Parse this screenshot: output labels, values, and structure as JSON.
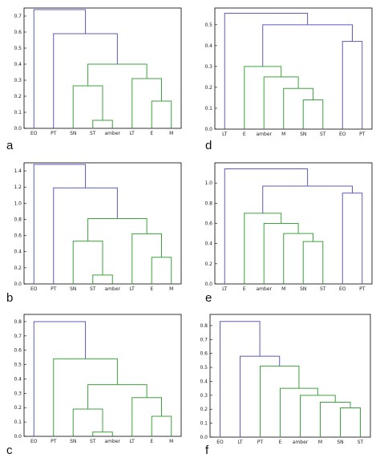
{
  "colors": {
    "top": "#5b5bc0",
    "cluster": "#3da33d",
    "frame": "#000000"
  },
  "chart_data": [
    {
      "type": "dendrogram",
      "panel": "a",
      "leaves": [
        "EO",
        "PT",
        "SN",
        "ST",
        "amber",
        "LT",
        "E",
        "M"
      ],
      "ylim": [
        0,
        0.75
      ],
      "yticks": [
        "0.0",
        "0.1",
        "0.2",
        "0.3",
        "0.4",
        "0.5",
        "0.6",
        "0.7"
      ],
      "yvals": [
        0,
        0.1,
        0.2,
        0.3,
        0.4,
        0.5,
        0.6,
        0.7
      ],
      "links": [
        {
          "left": 3,
          "right": 4,
          "height": 0.05,
          "color": "cluster"
        },
        {
          "left": 2,
          "right": 8,
          "height": 0.265,
          "color": "cluster"
        },
        {
          "left": 6,
          "right": 7,
          "height": 0.17,
          "color": "cluster"
        },
        {
          "left": 5,
          "right": 10,
          "height": 0.31,
          "color": "cluster"
        },
        {
          "left": 9,
          "right": 11,
          "height": 0.4,
          "color": "cluster"
        },
        {
          "left": 1,
          "right": 12,
          "height": 0.59,
          "color": "top"
        },
        {
          "left": 0,
          "right": 13,
          "height": 0.74,
          "color": "top"
        }
      ]
    },
    {
      "type": "dendrogram",
      "panel": "b",
      "leaves": [
        "EO",
        "PT",
        "SN",
        "ST",
        "amber",
        "LT",
        "E",
        "M"
      ],
      "ylim": [
        0,
        1.5
      ],
      "yticks": [
        "0.0",
        "0.2",
        "0.4",
        "0.6",
        "0.8",
        "1.0",
        "1.2",
        "1.4"
      ],
      "yvals": [
        0,
        0.2,
        0.4,
        0.6,
        0.8,
        1.0,
        1.2,
        1.4
      ],
      "links": [
        {
          "left": 3,
          "right": 4,
          "height": 0.11,
          "color": "cluster"
        },
        {
          "left": 2,
          "right": 8,
          "height": 0.53,
          "color": "cluster"
        },
        {
          "left": 6,
          "right": 7,
          "height": 0.33,
          "color": "cluster"
        },
        {
          "left": 5,
          "right": 10,
          "height": 0.62,
          "color": "cluster"
        },
        {
          "left": 9,
          "right": 11,
          "height": 0.81,
          "color": "cluster"
        },
        {
          "left": 1,
          "right": 12,
          "height": 1.19,
          "color": "top"
        },
        {
          "left": 0,
          "right": 13,
          "height": 1.48,
          "color": "top"
        }
      ]
    },
    {
      "type": "dendrogram",
      "panel": "c",
      "leaves": [
        "EO",
        "PT",
        "SN",
        "ST",
        "amber",
        "LT",
        "E",
        "M"
      ],
      "ylim": [
        0,
        0.85
      ],
      "yticks": [
        "0.0",
        "0.1",
        "0.2",
        "0.3",
        "0.4",
        "0.5",
        "0.6",
        "0.7",
        "0.8"
      ],
      "yvals": [
        0,
        0.1,
        0.2,
        0.3,
        0.4,
        0.5,
        0.6,
        0.7,
        0.8
      ],
      "links": [
        {
          "left": 3,
          "right": 4,
          "height": 0.03,
          "color": "cluster"
        },
        {
          "left": 2,
          "right": 8,
          "height": 0.19,
          "color": "cluster"
        },
        {
          "left": 6,
          "right": 7,
          "height": 0.14,
          "color": "cluster"
        },
        {
          "left": 5,
          "right": 10,
          "height": 0.27,
          "color": "cluster"
        },
        {
          "left": 9,
          "right": 11,
          "height": 0.36,
          "color": "cluster"
        },
        {
          "left": 1,
          "right": 12,
          "height": 0.54,
          "color": "cluster"
        },
        {
          "left": 0,
          "right": 13,
          "height": 0.8,
          "color": "top"
        }
      ]
    },
    {
      "type": "dendrogram",
      "panel": "d",
      "leaves": [
        "LT",
        "E",
        "amber",
        "M",
        "SN",
        "ST",
        "EO",
        "PT"
      ],
      "ylim": [
        0,
        0.58
      ],
      "yticks": [
        "0.0",
        "0.1",
        "0.2",
        "0.3",
        "0.4",
        "0.5"
      ],
      "yvals": [
        0,
        0.1,
        0.2,
        0.3,
        0.4,
        0.5
      ],
      "links": [
        {
          "left": 4,
          "right": 5,
          "height": 0.14,
          "color": "cluster"
        },
        {
          "left": 3,
          "right": 8,
          "height": 0.195,
          "color": "cluster"
        },
        {
          "left": 2,
          "right": 9,
          "height": 0.25,
          "color": "cluster"
        },
        {
          "left": 1,
          "right": 10,
          "height": 0.3,
          "color": "cluster"
        },
        {
          "left": 6,
          "right": 7,
          "height": 0.42,
          "color": "top"
        },
        {
          "left": 11,
          "right": 12,
          "height": 0.5,
          "color": "top"
        },
        {
          "left": 0,
          "right": 13,
          "height": 0.555,
          "color": "top"
        }
      ]
    },
    {
      "type": "dendrogram",
      "panel": "e",
      "leaves": [
        "LT",
        "E",
        "amber",
        "M",
        "SN",
        "ST",
        "EO",
        "PT"
      ],
      "ylim": [
        0,
        1.2
      ],
      "yticks": [
        "0.0",
        "0.2",
        "0.4",
        "0.6",
        "0.8",
        "1.0"
      ],
      "yvals": [
        0,
        0.2,
        0.4,
        0.6,
        0.8,
        1.0
      ],
      "links": [
        {
          "left": 4,
          "right": 5,
          "height": 0.42,
          "color": "cluster"
        },
        {
          "left": 3,
          "right": 8,
          "height": 0.5,
          "color": "cluster"
        },
        {
          "left": 2,
          "right": 9,
          "height": 0.6,
          "color": "cluster"
        },
        {
          "left": 1,
          "right": 10,
          "height": 0.7,
          "color": "cluster"
        },
        {
          "left": 6,
          "right": 7,
          "height": 0.9,
          "color": "top"
        },
        {
          "left": 11,
          "right": 12,
          "height": 0.97,
          "color": "top"
        },
        {
          "left": 0,
          "right": 13,
          "height": 1.14,
          "color": "top"
        }
      ]
    },
    {
      "type": "dendrogram",
      "panel": "f",
      "leaves": [
        "EO",
        "LT",
        "PT",
        "E",
        "amber",
        "M",
        "SN",
        "ST"
      ],
      "ylim": [
        0,
        0.88
      ],
      "yticks": [
        "0.0",
        "0.1",
        "0.2",
        "0.3",
        "0.4",
        "0.5",
        "0.6",
        "0.7",
        "0.8"
      ],
      "yvals": [
        0,
        0.1,
        0.2,
        0.3,
        0.4,
        0.5,
        0.6,
        0.7,
        0.8
      ],
      "links": [
        {
          "left": 6,
          "right": 7,
          "height": 0.21,
          "color": "cluster"
        },
        {
          "left": 5,
          "right": 8,
          "height": 0.25,
          "color": "cluster"
        },
        {
          "left": 4,
          "right": 9,
          "height": 0.3,
          "color": "cluster"
        },
        {
          "left": 3,
          "right": 10,
          "height": 0.35,
          "color": "cluster"
        },
        {
          "left": 2,
          "right": 11,
          "height": 0.51,
          "color": "cluster"
        },
        {
          "left": 1,
          "right": 12,
          "height": 0.58,
          "color": "top"
        },
        {
          "left": 0,
          "right": 13,
          "height": 0.83,
          "color": "top"
        }
      ]
    }
  ]
}
